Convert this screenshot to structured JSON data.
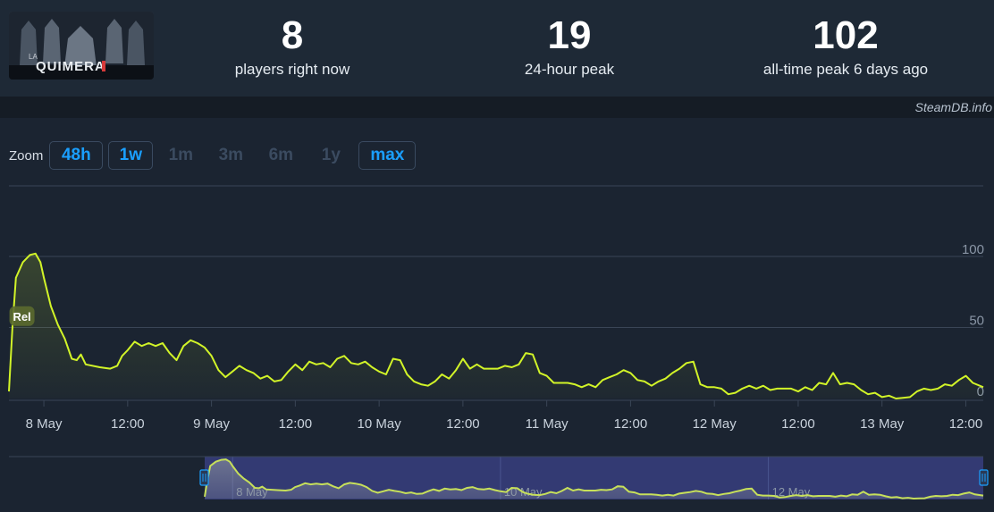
{
  "app": {
    "game_logo_alt": "LA QUIMERA",
    "credit": "SteamDB.info"
  },
  "stats": [
    {
      "value": "8",
      "label": "players right now"
    },
    {
      "value": "19",
      "label": "24-hour peak"
    },
    {
      "value": "102",
      "label": "all-time peak 6 days ago"
    }
  ],
  "zoom": {
    "label": "Zoom",
    "options": [
      {
        "label": "48h",
        "enabled": true
      },
      {
        "label": "1w",
        "enabled": true
      },
      {
        "label": "1m",
        "enabled": false
      },
      {
        "label": "3m",
        "enabled": false
      },
      {
        "label": "6m",
        "enabled": false
      },
      {
        "label": "1y",
        "enabled": false
      },
      {
        "label": "max",
        "enabled": true
      }
    ]
  },
  "colors": {
    "line": "#d2f428",
    "accent": "#1a9fff",
    "grid": "#3a4556",
    "navigator": "#333a73"
  },
  "chart_data": {
    "type": "line",
    "x_unit": "hours since 7 May 00:00",
    "x_ticks": [
      {
        "x": 24,
        "label": "8 May"
      },
      {
        "x": 36,
        "label": "12:00"
      },
      {
        "x": 48,
        "label": "9 May"
      },
      {
        "x": 60,
        "label": "12:00"
      },
      {
        "x": 72,
        "label": "10 May"
      },
      {
        "x": 84,
        "label": "12:00"
      },
      {
        "x": 96,
        "label": "11 May"
      },
      {
        "x": 108,
        "label": "12:00"
      },
      {
        "x": 120,
        "label": "12 May"
      },
      {
        "x": 132,
        "label": "12:00"
      },
      {
        "x": 144,
        "label": "13 May"
      },
      {
        "x": 156,
        "label": "12:00"
      }
    ],
    "y_ticks": [
      0,
      50,
      100
    ],
    "ylim": [
      0,
      100
    ],
    "xlim": [
      19,
      158.5
    ],
    "annotation": {
      "label": "Rel",
      "x": 19.2,
      "y": 58
    },
    "series": [
      {
        "name": "Players",
        "points": [
          [
            19,
            5
          ],
          [
            19.5,
            50
          ],
          [
            20,
            85
          ],
          [
            21,
            96
          ],
          [
            22,
            101
          ],
          [
            22.8,
            102
          ],
          [
            23.5,
            96
          ],
          [
            24,
            85
          ],
          [
            25,
            65
          ],
          [
            26,
            52
          ],
          [
            27,
            42
          ],
          [
            28,
            28
          ],
          [
            28.7,
            27
          ],
          [
            29.3,
            31
          ],
          [
            30,
            24
          ],
          [
            32,
            22
          ],
          [
            33.5,
            21
          ],
          [
            34.5,
            23
          ],
          [
            35.2,
            30
          ],
          [
            36,
            34
          ],
          [
            37,
            40
          ],
          [
            38,
            37
          ],
          [
            39,
            39
          ],
          [
            40,
            37
          ],
          [
            41,
            39
          ],
          [
            42,
            32
          ],
          [
            43,
            27
          ],
          [
            44,
            37
          ],
          [
            45,
            41
          ],
          [
            46,
            39
          ],
          [
            47,
            36
          ],
          [
            48,
            30
          ],
          [
            49,
            20
          ],
          [
            50,
            15
          ],
          [
            51,
            19
          ],
          [
            52,
            23
          ],
          [
            53,
            20
          ],
          [
            54,
            18
          ],
          [
            55,
            14
          ],
          [
            56,
            16
          ],
          [
            57,
            12
          ],
          [
            58,
            13
          ],
          [
            59,
            19
          ],
          [
            60,
            24
          ],
          [
            61,
            20
          ],
          [
            62,
            26
          ],
          [
            63,
            24
          ],
          [
            64,
            25
          ],
          [
            65,
            22
          ],
          [
            66,
            28
          ],
          [
            67,
            30
          ],
          [
            68,
            25
          ],
          [
            69,
            24
          ],
          [
            70,
            26
          ],
          [
            71,
            22
          ],
          [
            72,
            19
          ],
          [
            73,
            17
          ],
          [
            74,
            28
          ],
          [
            75,
            27
          ],
          [
            76,
            17
          ],
          [
            77,
            12
          ],
          [
            78,
            10
          ],
          [
            79,
            9
          ],
          [
            80,
            12
          ],
          [
            81,
            17
          ],
          [
            82,
            14
          ],
          [
            83,
            20
          ],
          [
            84,
            28
          ],
          [
            85,
            21
          ],
          [
            86,
            24
          ],
          [
            87,
            21
          ],
          [
            88,
            21
          ],
          [
            89,
            21
          ],
          [
            90,
            23
          ],
          [
            91,
            22
          ],
          [
            92,
            24
          ],
          [
            93,
            32
          ],
          [
            94,
            31
          ],
          [
            95,
            18
          ],
          [
            96,
            16
          ],
          [
            97,
            11
          ],
          [
            98,
            11
          ],
          [
            99,
            11
          ],
          [
            100,
            10
          ],
          [
            101,
            8
          ],
          [
            102,
            10
          ],
          [
            103,
            8
          ],
          [
            104,
            13
          ],
          [
            105,
            15
          ],
          [
            106,
            17
          ],
          [
            107,
            20
          ],
          [
            108,
            18
          ],
          [
            109,
            13
          ],
          [
            110,
            12
          ],
          [
            111,
            9
          ],
          [
            112,
            12
          ],
          [
            113,
            14
          ],
          [
            114,
            18
          ],
          [
            115,
            21
          ],
          [
            116,
            25
          ],
          [
            117,
            26
          ],
          [
            118,
            10
          ],
          [
            119,
            8
          ],
          [
            120,
            8
          ],
          [
            121,
            7
          ],
          [
            122,
            3
          ],
          [
            123,
            4
          ],
          [
            124,
            7
          ],
          [
            125,
            9
          ],
          [
            126,
            7
          ],
          [
            127,
            9
          ],
          [
            128,
            6
          ],
          [
            129,
            7
          ],
          [
            130,
            7
          ],
          [
            131,
            7
          ],
          [
            132,
            5
          ],
          [
            133,
            8
          ],
          [
            134,
            6
          ],
          [
            135,
            11
          ],
          [
            136,
            10
          ],
          [
            137,
            18
          ],
          [
            138,
            10
          ],
          [
            139,
            11
          ],
          [
            140,
            10
          ],
          [
            141,
            6
          ],
          [
            142,
            3
          ],
          [
            143,
            4
          ],
          [
            144,
            1
          ],
          [
            145,
            2
          ],
          [
            146,
            0
          ],
          [
            147,
            0.5
          ],
          [
            148,
            1
          ],
          [
            149,
            5
          ],
          [
            150,
            7
          ],
          [
            151,
            6
          ],
          [
            152,
            7
          ],
          [
            153,
            10
          ],
          [
            154,
            9
          ],
          [
            155,
            13
          ],
          [
            156,
            16
          ],
          [
            157,
            11
          ],
          [
            158.5,
            8
          ]
        ]
      }
    ]
  }
}
